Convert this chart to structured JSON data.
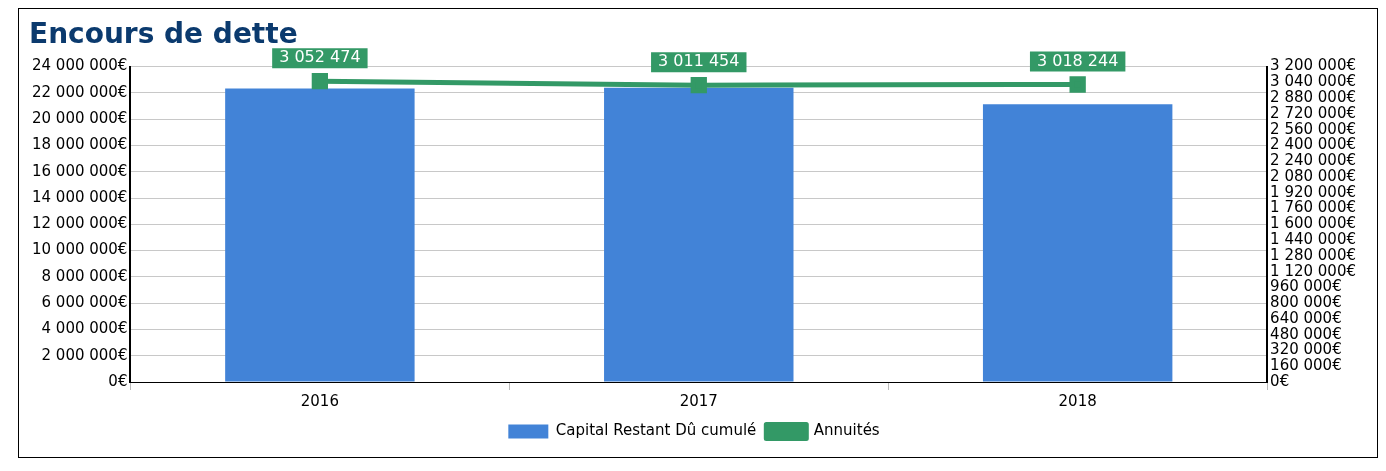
{
  "chart_data": {
    "type": "bar",
    "title": "Encours de dette",
    "categories": [
      "2016",
      "2017",
      "2018"
    ],
    "series": [
      {
        "name": "Capital Restant Dû cumulé",
        "color": "#4283d7",
        "values": [
          22340000,
          22400000,
          21130000
        ]
      },
      {
        "name": "Annuités",
        "type": "line",
        "axis": "y2",
        "color": "#339966",
        "marker": "square",
        "values": [
          3052474,
          3011454,
          3018244
        ],
        "value_labels": [
          "3 052 474",
          "3 011 454",
          "3 018 244"
        ]
      }
    ],
    "ylim": [
      0,
      24000000
    ],
    "yticks": [
      {
        "value": 0,
        "label": "0€"
      },
      {
        "value": 2000000,
        "label": "2 000 000€"
      },
      {
        "value": 4000000,
        "label": "4 000 000€"
      },
      {
        "value": 6000000,
        "label": "6 000 000€"
      },
      {
        "value": 8000000,
        "label": "8 000 000€"
      },
      {
        "value": 10000000,
        "label": "10 000 000€"
      },
      {
        "value": 12000000,
        "label": "12 000 000€"
      },
      {
        "value": 14000000,
        "label": "14 000 000€"
      },
      {
        "value": 16000000,
        "label": "16 000 000€"
      },
      {
        "value": 18000000,
        "label": "18 000 000€"
      },
      {
        "value": 20000000,
        "label": "20 000 000€"
      },
      {
        "value": 22000000,
        "label": "22 000 000€"
      },
      {
        "value": 24000000,
        "label": "24 000 000€"
      }
    ],
    "y2lim": [
      0,
      3200000
    ],
    "y2ticks": [
      {
        "value": 0,
        "label": "0€"
      },
      {
        "value": 160000,
        "label": "160 000€"
      },
      {
        "value": 320000,
        "label": "320 000€"
      },
      {
        "value": 480000,
        "label": "480 000€"
      },
      {
        "value": 640000,
        "label": "640 000€"
      },
      {
        "value": 800000,
        "label": "800 000€"
      },
      {
        "value": 960000,
        "label": "960 000€"
      },
      {
        "value": 1120000,
        "label": "1 120 000€"
      },
      {
        "value": 1280000,
        "label": "1 280 000€"
      },
      {
        "value": 1440000,
        "label": "1 440 000€"
      },
      {
        "value": 1600000,
        "label": "1 600 000€"
      },
      {
        "value": 1760000,
        "label": "1 760 000€"
      },
      {
        "value": 1920000,
        "label": "1 920 000€"
      },
      {
        "value": 2080000,
        "label": "2 080 000€"
      },
      {
        "value": 2240000,
        "label": "2 240 000€"
      },
      {
        "value": 2400000,
        "label": "2 400 000€"
      },
      {
        "value": 2560000,
        "label": "2 560 000€"
      },
      {
        "value": 2720000,
        "label": "2 720 000€"
      },
      {
        "value": 2880000,
        "label": "2 880 000€"
      },
      {
        "value": 3040000,
        "label": "3 040 000€"
      },
      {
        "value": 3200000,
        "label": "3 200 000€"
      }
    ],
    "grid": "y",
    "legend": "bottom"
  }
}
